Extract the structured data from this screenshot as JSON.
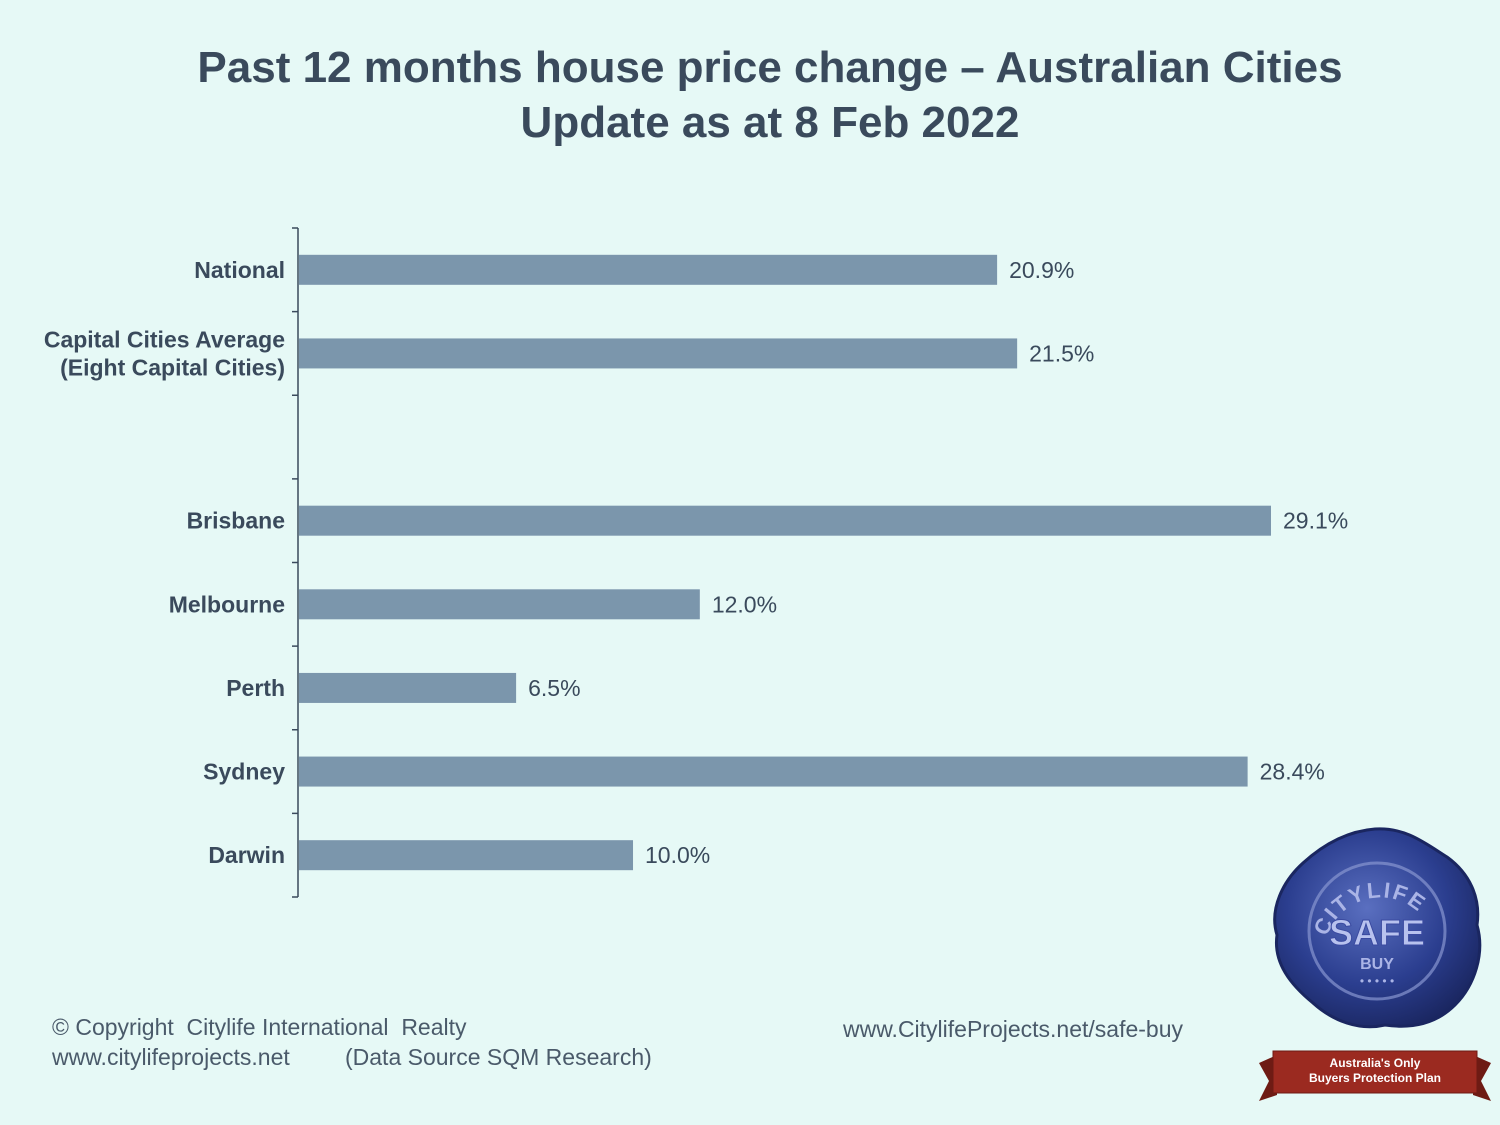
{
  "title_line1": "Past 12 months house price change – Australian  Cities",
  "title_line2": "Update as at 8 Feb 2022",
  "chart_data": {
    "type": "bar",
    "orientation": "horizontal",
    "categories": [
      [
        "National"
      ],
      [
        "Capital Cities Average",
        "(Eight Capital Cities)"
      ],
      [
        ""
      ],
      [
        "Brisbane"
      ],
      [
        "Melbourne"
      ],
      [
        "Perth"
      ],
      [
        "Sydney"
      ],
      [
        "Darwin"
      ]
    ],
    "values": [
      20.9,
      21.5,
      null,
      29.1,
      12.0,
      6.5,
      28.4,
      10.0
    ],
    "value_labels": [
      "20.9%",
      "21.5%",
      "",
      "29.1%",
      "12.0%",
      "6.5%",
      "28.4%",
      "10.0%"
    ],
    "xlim": [
      0,
      30
    ],
    "bar_color": "#7b96ac",
    "grid": false,
    "legend": "none"
  },
  "footer": {
    "copyright": "© Copyright  Citylife International  Realty",
    "website": "www.citylifeprojects.net",
    "source": "(Data Source SQM Research)",
    "safe_buy_url": "www.CitylifeProjects.net/safe-buy"
  },
  "seal": {
    "icon": "wax-seal-icon",
    "arc_text": "CITYLIFE",
    "main_text": "SAFE",
    "sub_text": "BUY",
    "stars": "• • • • •",
    "ribbon_line1": "Australia's Only",
    "ribbon_line2": "Buyers Protection Plan",
    "colors": {
      "seal": "#2b3e8f",
      "ribbon": "#9b2a20"
    }
  }
}
